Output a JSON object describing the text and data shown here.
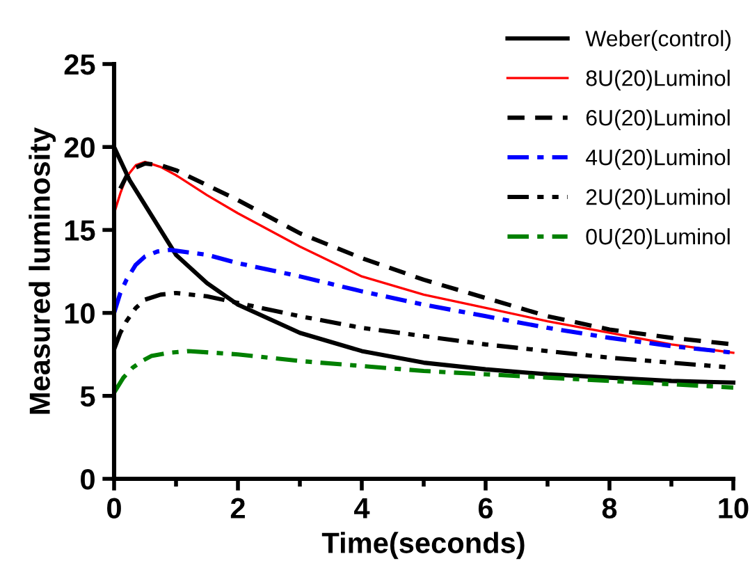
{
  "chart_data": {
    "type": "line",
    "xlabel": "Time(seconds)",
    "ylabel": "Measured luminosity",
    "xlim": [
      0,
      10
    ],
    "xticks": [
      0,
      2,
      4,
      6,
      8,
      10
    ],
    "ylim": [
      0,
      25
    ],
    "yticks": [
      0,
      5,
      10,
      15,
      20,
      25
    ],
    "grid": false,
    "legend": "top right",
    "marker": "none",
    "series": [
      {
        "name": "Weber(control)",
        "color": "#000000",
        "line_style": "solid",
        "x": [
          0,
          0.25,
          0.5,
          1,
          1.5,
          2,
          3,
          4,
          5,
          6,
          7,
          8,
          9,
          10
        ],
        "values": [
          20,
          18,
          16.5,
          13.5,
          11.8,
          10.5,
          8.8,
          7.7,
          7.0,
          6.6,
          6.3,
          6.1,
          5.9,
          5.8
        ]
      },
      {
        "name": "8U(20)Luminol",
        "color": "#ff0000",
        "line_style": "solid",
        "x": [
          0,
          0.1,
          0.2,
          0.35,
          0.5,
          0.75,
          1,
          1.5,
          2,
          3,
          4,
          5,
          6,
          7,
          8,
          9,
          10
        ],
        "values": [
          16,
          17.2,
          18.2,
          18.9,
          19.1,
          18.8,
          18.3,
          17.1,
          16,
          14,
          12.2,
          11.1,
          10.3,
          9.5,
          8.8,
          8.1,
          7.6
        ]
      },
      {
        "name": "6U(20)Luminol",
        "color": "#000000",
        "line_style": "dashed",
        "x": [
          0.1,
          0.25,
          0.5,
          0.75,
          1,
          1.5,
          2,
          3,
          4,
          5,
          6,
          7,
          8,
          9,
          10
        ],
        "values": [
          17.5,
          18.6,
          19,
          18.9,
          18.6,
          17.7,
          16.8,
          14.8,
          13.3,
          12,
          10.9,
          9.8,
          9,
          8.5,
          8.1
        ]
      },
      {
        "name": "4U(20)Luminol",
        "color": "#0000ff",
        "line_style": "dashdot",
        "x": [
          0,
          0.1,
          0.2,
          0.35,
          0.5,
          0.7,
          0.9,
          1.5,
          2,
          3,
          4,
          5,
          6,
          7,
          8,
          9,
          10
        ],
        "values": [
          10,
          11.2,
          12,
          12.9,
          13.4,
          13.7,
          13.8,
          13.5,
          13,
          12.2,
          11.3,
          10.5,
          9.8,
          9.1,
          8.5,
          8.0,
          7.6
        ]
      },
      {
        "name": "2U(20)Luminol",
        "color": "#000000",
        "line_style": "dashdotdot",
        "x": [
          0,
          0.1,
          0.2,
          0.35,
          0.5,
          0.75,
          1,
          1.5,
          2,
          3,
          4,
          5,
          6,
          7,
          8,
          9,
          10
        ],
        "values": [
          7.8,
          8.8,
          9.5,
          10.3,
          10.8,
          11.1,
          11.2,
          11,
          10.6,
          9.8,
          9.1,
          8.6,
          8.1,
          7.7,
          7.3,
          7.0,
          6.7
        ]
      },
      {
        "name": "0U(20)Luminol",
        "color": "#008000",
        "line_style": "dashdot",
        "x": [
          0,
          0.15,
          0.3,
          0.45,
          0.6,
          0.9,
          1.2,
          1.6,
          2,
          3,
          4,
          5,
          6,
          7,
          8,
          9,
          10
        ],
        "values": [
          5.2,
          6.1,
          6.7,
          7.1,
          7.4,
          7.6,
          7.7,
          7.6,
          7.5,
          7.1,
          6.8,
          6.5,
          6.3,
          6.1,
          5.9,
          5.7,
          5.5
        ]
      }
    ]
  }
}
